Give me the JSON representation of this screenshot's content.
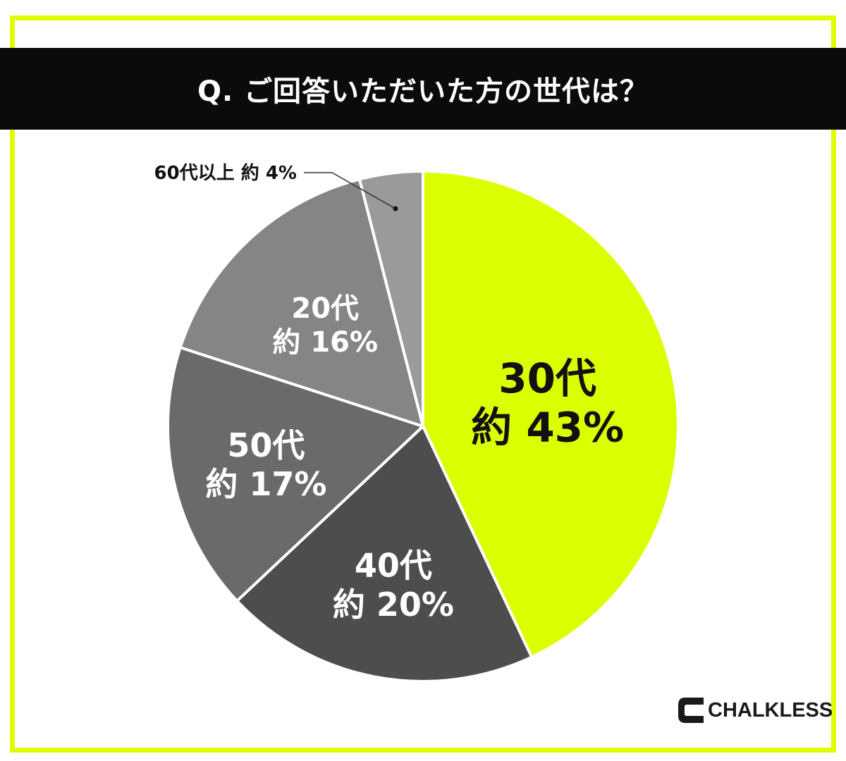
{
  "title": "Q. ご回答いただいた方の世代は？",
  "brand": "CHALKLESS",
  "colors": {
    "frame": "#dfff00",
    "title_bg": "#0b0b0b",
    "accent_slice": "#dcff00",
    "slice_40": "#4d4d4d",
    "slice_50": "#6a6a6a",
    "slice_20": "#858585",
    "slice_60": "#9a9a9a",
    "separator": "#ffffff"
  },
  "chart_data": {
    "type": "pie",
    "title": "Q. ご回答いただいた方の世代は？",
    "slices": [
      {
        "label": "30代",
        "value_label": "約 43%",
        "value": 43,
        "color": "#dcff00",
        "text_color": "#111111"
      },
      {
        "label": "40代",
        "value_label": "約 20%",
        "value": 20,
        "color": "#4d4d4d",
        "text_color": "#ffffff"
      },
      {
        "label": "50代",
        "value_label": "約 17%",
        "value": 17,
        "color": "#6a6a6a",
        "text_color": "#ffffff"
      },
      {
        "label": "20代",
        "value_label": "約 16%",
        "value": 16,
        "color": "#858585",
        "text_color": "#ffffff"
      },
      {
        "label": "60代以上",
        "value_label": "約 4%",
        "value": 4,
        "color": "#9a9a9a",
        "text_color": "#111111"
      }
    ],
    "start_angle": "12 o'clock",
    "direction": "clockwise",
    "legend": "none"
  }
}
